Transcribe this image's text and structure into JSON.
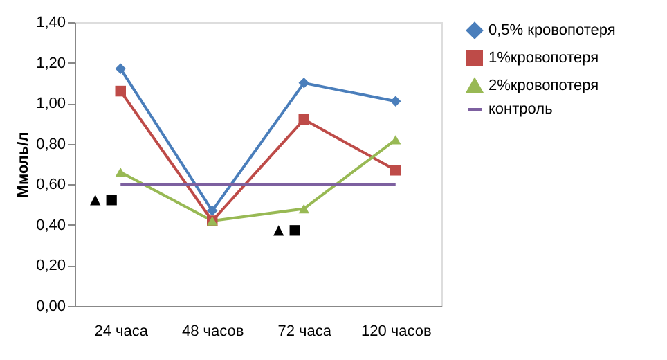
{
  "chart_data": {
    "type": "line",
    "ylabel": "Ммоль/л",
    "categories": [
      "24 часа",
      "48 часов",
      "72 часа",
      "120 часов"
    ],
    "series": [
      {
        "name": "0,5% кровопотеря",
        "color": "#4a7ebb",
        "marker": "diamond",
        "values": [
          1.17,
          0.47,
          1.1,
          1.01
        ]
      },
      {
        "name": "1%кровопотеря",
        "color": "#be4b48",
        "marker": "square",
        "values": [
          1.06,
          0.42,
          0.92,
          0.67
        ]
      },
      {
        "name": "2%кровопотеря",
        "color": "#98b954",
        "marker": "triangle",
        "values": [
          0.66,
          0.42,
          0.48,
          0.82
        ]
      },
      {
        "name": "контроль",
        "color": "#7d60a0",
        "marker": "none",
        "values": [
          0.6,
          0.6,
          0.6,
          0.6
        ]
      }
    ],
    "ylim": [
      0,
      1.4
    ],
    "yticks": [
      {
        "value": 0,
        "label": "0,00"
      },
      {
        "value": 0.2,
        "label": "0,20"
      },
      {
        "value": 0.4,
        "label": "0,40"
      },
      {
        "value": 0.6,
        "label": "0,60"
      },
      {
        "value": 0.8,
        "label": "0,80"
      },
      {
        "value": 1.0,
        "label": "1,00"
      },
      {
        "value": 1.2,
        "label": "1,20"
      },
      {
        "value": 1.4,
        "label": "1,40"
      }
    ],
    "annotations": [
      "▲ ■",
      "▲ ■"
    ],
    "grid": false,
    "legend": "right"
  }
}
